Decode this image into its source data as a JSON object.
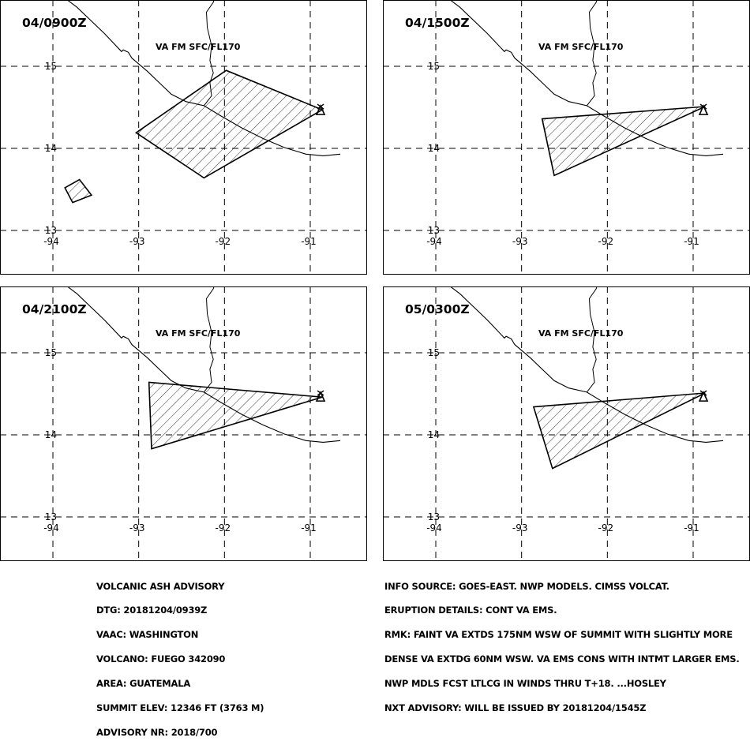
{
  "panels": [
    {
      "time": "04/0900Z",
      "label": "VA FM SFC/FL170",
      "polygons": [
        [
          [
            -93.03,
            14.19
          ],
          [
            -91.98,
            14.95
          ],
          [
            -90.86,
            14.47
          ],
          [
            -92.24,
            13.64
          ],
          [
            -93.03,
            14.19
          ]
        ],
        [
          [
            -93.86,
            13.52
          ],
          [
            -93.77,
            13.34
          ],
          [
            -93.55,
            13.43
          ],
          [
            -93.69,
            13.62
          ],
          [
            -93.86,
            13.52
          ]
        ]
      ]
    },
    {
      "time": "04/1500Z",
      "label": "VA FM SFC/FL170",
      "polygons": [
        [
          [
            -92.76,
            14.36
          ],
          [
            -90.86,
            14.51
          ],
          [
            -92.62,
            13.67
          ],
          [
            -92.76,
            14.36
          ]
        ]
      ]
    },
    {
      "time": "04/2100Z",
      "label": "VA FM SFC/FL170",
      "polygons": [
        [
          [
            -92.88,
            14.64
          ],
          [
            -90.86,
            14.46
          ],
          [
            -92.85,
            13.83
          ],
          [
            -92.88,
            14.64
          ]
        ]
      ]
    },
    {
      "time": "05/0300Z",
      "label": "VA FM SFC/FL170",
      "polygons": [
        [
          [
            -92.86,
            14.34
          ],
          [
            -90.86,
            14.51
          ],
          [
            -92.64,
            13.59
          ],
          [
            -92.86,
            14.34
          ]
        ]
      ]
    }
  ],
  "axes": {
    "lon_ticks": [
      "-94",
      "-93",
      "-92",
      "-91"
    ],
    "lat_ticks": [
      "15",
      "14",
      "13"
    ],
    "lon_values": [
      -94,
      -93,
      -92,
      -91
    ],
    "lat_values": [
      15,
      14,
      13
    ],
    "lon_range": [
      -94.05,
      -90.65
    ],
    "lat_range": [
      12.9,
      15.8
    ]
  },
  "volcano": {
    "lon": -90.88,
    "lat": 14.47
  },
  "advisory_left": [
    "VOLCANIC ASH ADVISORY",
    "DTG: 20181204/0939Z",
    "VAAC: WASHINGTON",
    "VOLCANO: FUEGO 342090",
    "AREA: GUATEMALA",
    "SUMMIT ELEV: 12346 FT (3763 M)",
    "ADVISORY NR: 2018/700"
  ],
  "advisory_right": [
    "INFO SOURCE: GOES-EAST. NWP MODELS. CIMSS VOLCAT.",
    "ERUPTION DETAILS: CONT VA EMS.",
    "RMK: FAINT VA EXTDS 175NM WSW OF SUMMIT WITH SLIGHTLY MORE",
    "DENSE VA EXTDG 60NM WSW. VA EMS CONS WITH INTMT LARGER EMS.",
    "NWP MDLS FCST LTLCG IN WINDS THRU T+18. ...HOSLEY",
    "NXT ADVISORY: WILL BE ISSUED BY 20181204/1545Z"
  ]
}
